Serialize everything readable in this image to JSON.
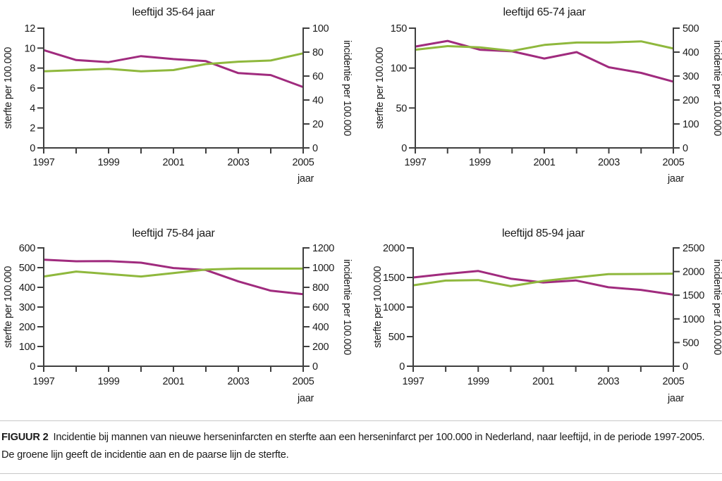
{
  "figure": {
    "caption_label": "FIGUUR 2",
    "caption_text": "Incidentie bij mannen van nieuwe herseninfarcten en sterfte aan een herseninfarct per 100.000 in Nederland, naar leeftijd, in de periode 1997-2005. De groene lijn geeft de incidentie aan en de paarse lijn de sterfte."
  },
  "colors": {
    "sterfte": "#a02b7e",
    "incidentie": "#8fb83d",
    "axis": "#3f3f3f",
    "text": "#1b1b1b",
    "rule": "#c8c8c8"
  },
  "chart_data": [
    {
      "type": "line",
      "title": "leeftijd 35-64 jaar",
      "xlabel": "jaar",
      "x": [
        1997,
        1998,
        1999,
        2000,
        2001,
        2002,
        2003,
        2004,
        2005
      ],
      "x_labeled_ticks": [
        1997,
        1999,
        2001,
        2003,
        2005
      ],
      "left_axis": {
        "label": "sterfte per 100.000",
        "range": [
          0,
          12
        ],
        "ticks": [
          0,
          2,
          4,
          6,
          8,
          10,
          12
        ]
      },
      "right_axis": {
        "label": "incidentie per 100.000",
        "range": [
          0,
          100
        ],
        "ticks": [
          0,
          20,
          40,
          60,
          80,
          100
        ]
      },
      "series": [
        {
          "name": "sterfte",
          "axis": "left",
          "color_key": "sterfte",
          "values": [
            9.8,
            8.8,
            8.6,
            9.2,
            8.9,
            8.7,
            7.5,
            7.3,
            6.1
          ]
        },
        {
          "name": "incidentie",
          "axis": "right",
          "color_key": "incidentie",
          "values": [
            64,
            65,
            66,
            64,
            65,
            70,
            72,
            73,
            79
          ]
        }
      ]
    },
    {
      "type": "line",
      "title": "leeftijd 65-74 jaar",
      "xlabel": "jaar",
      "x": [
        1997,
        1998,
        1999,
        2000,
        2001,
        2002,
        2003,
        2004,
        2005
      ],
      "x_labeled_ticks": [
        1997,
        1999,
        2001,
        2003,
        2005
      ],
      "left_axis": {
        "label": "sterfte per 100.000",
        "range": [
          0,
          150
        ],
        "ticks": [
          0,
          50,
          100,
          150
        ]
      },
      "right_axis": {
        "label": "incidentie per 100.000",
        "range": [
          0,
          500
        ],
        "ticks": [
          0,
          100,
          200,
          300,
          400,
          500
        ]
      },
      "series": [
        {
          "name": "sterfte",
          "axis": "left",
          "color_key": "sterfte",
          "values": [
            127,
            134,
            123,
            121,
            112,
            120,
            101,
            94,
            83
          ]
        },
        {
          "name": "incidentie",
          "axis": "right",
          "color_key": "incidentie",
          "values": [
            410,
            425,
            420,
            405,
            430,
            440,
            440,
            445,
            415
          ]
        }
      ]
    },
    {
      "type": "line",
      "title": "leeftijd 75-84 jaar",
      "xlabel": "jaar",
      "x": [
        1997,
        1998,
        1999,
        2000,
        2001,
        2002,
        2003,
        2004,
        2005
      ],
      "x_labeled_ticks": [
        1997,
        1999,
        2001,
        2003,
        2005
      ],
      "left_axis": {
        "label": "sterfte per 100.000",
        "range": [
          0,
          600
        ],
        "ticks": [
          0,
          100,
          200,
          300,
          400,
          500,
          600
        ]
      },
      "right_axis": {
        "label": "incidentie per 100.000",
        "range": [
          0,
          1200
        ],
        "ticks": [
          0,
          200,
          400,
          600,
          800,
          1000,
          1200
        ]
      },
      "series": [
        {
          "name": "sterfte",
          "axis": "left",
          "color_key": "sterfte",
          "values": [
            540,
            532,
            533,
            525,
            498,
            488,
            430,
            383,
            365
          ]
        },
        {
          "name": "incidentie",
          "axis": "right",
          "color_key": "incidentie",
          "values": [
            910,
            960,
            935,
            910,
            945,
            980,
            990,
            990,
            990
          ]
        }
      ]
    },
    {
      "type": "line",
      "title": "leeftijd 85-94 jaar",
      "xlabel": "jaar",
      "x": [
        1997,
        1998,
        1999,
        2000,
        2001,
        2002,
        2003,
        2004,
        2005
      ],
      "x_labeled_ticks": [
        1997,
        1999,
        2001,
        2003,
        2005
      ],
      "left_axis": {
        "label": "sterfte per 100.000",
        "range": [
          0,
          2000
        ],
        "ticks": [
          0,
          500,
          1000,
          1500,
          2000
        ]
      },
      "right_axis": {
        "label": "incidentie per 100.000",
        "range": [
          0,
          2500
        ],
        "ticks": [
          0,
          500,
          1000,
          1500,
          2000,
          2500
        ]
      },
      "series": [
        {
          "name": "sterfte",
          "axis": "left",
          "color_key": "sterfte",
          "values": [
            1500,
            1560,
            1610,
            1480,
            1415,
            1450,
            1335,
            1290,
            1210
          ]
        },
        {
          "name": "incidentie",
          "axis": "right",
          "color_key": "incidentie",
          "values": [
            1710,
            1810,
            1820,
            1690,
            1800,
            1875,
            1945,
            1950,
            1955
          ]
        }
      ]
    }
  ]
}
